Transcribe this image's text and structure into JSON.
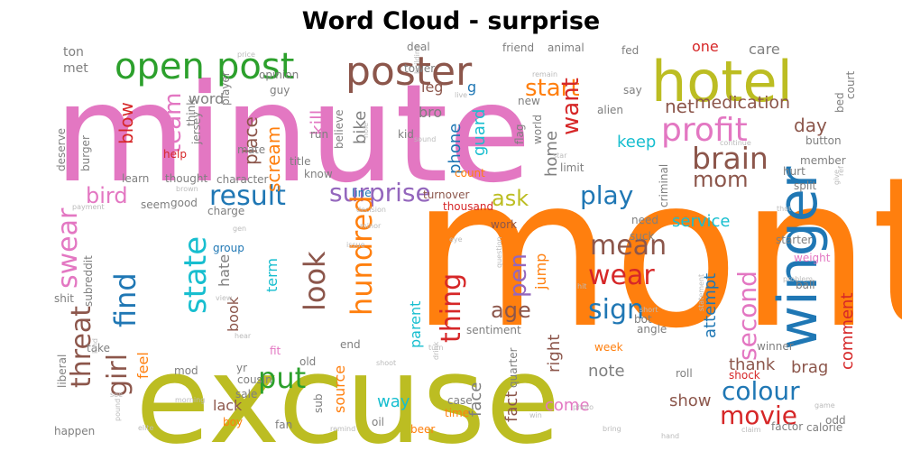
{
  "title": "Word Cloud - surprise",
  "chart_data": {
    "type": "wordcloud",
    "title": "Word Cloud - surprise",
    "words": [
      {
        "text": "month",
        "weight": 100,
        "color": "#ff7f0e"
      },
      {
        "text": "minute",
        "weight": 72,
        "color": "#e377c2"
      },
      {
        "text": "excuse",
        "weight": 70,
        "color": "#bcbd22"
      },
      {
        "text": "hotel",
        "weight": 30,
        "color": "#bcbd22"
      },
      {
        "text": "winger",
        "weight": 28,
        "color": "#1f77b4"
      },
      {
        "text": "poster",
        "weight": 22,
        "color": "#8c564b"
      },
      {
        "text": "open",
        "weight": 20,
        "color": "#2ca02c"
      },
      {
        "text": "post",
        "weight": 20,
        "color": "#2ca02c"
      },
      {
        "text": "profit",
        "weight": 19,
        "color": "#e377c2"
      },
      {
        "text": "brain",
        "weight": 17,
        "color": "#8c564b"
      },
      {
        "text": "result",
        "weight": 16,
        "color": "#1f77b4"
      },
      {
        "text": "surprise",
        "weight": 15,
        "color": "#9467bd"
      },
      {
        "text": "look",
        "weight": 18,
        "color": "#8c564b"
      },
      {
        "text": "hundred",
        "weight": 17,
        "color": "#ff7f0e"
      },
      {
        "text": "state",
        "weight": 17,
        "color": "#17becf"
      },
      {
        "text": "find",
        "weight": 17,
        "color": "#1f77b4"
      },
      {
        "text": "swear",
        "weight": 16,
        "color": "#e377c2"
      },
      {
        "text": "threat",
        "weight": 16,
        "color": "#8c564b"
      },
      {
        "text": "girl",
        "weight": 16,
        "color": "#8c564b"
      },
      {
        "text": "put",
        "weight": 17,
        "color": "#2ca02c"
      },
      {
        "text": "thing",
        "weight": 16,
        "color": "#d62728"
      },
      {
        "text": "mean",
        "weight": 16,
        "color": "#8c564b"
      },
      {
        "text": "wear",
        "weight": 16,
        "color": "#d62728"
      },
      {
        "text": "sign",
        "weight": 16,
        "color": "#1f77b4"
      },
      {
        "text": "play",
        "weight": 15,
        "color": "#1f77b4"
      },
      {
        "text": "second",
        "weight": 15,
        "color": "#e377c2"
      },
      {
        "text": "colour",
        "weight": 15,
        "color": "#1f77b4"
      },
      {
        "text": "movie",
        "weight": 15,
        "color": "#d62728"
      },
      {
        "text": "team",
        "weight": 14,
        "color": "#e377c2"
      },
      {
        "text": "start",
        "weight": 14,
        "color": "#ff7f0e"
      },
      {
        "text": "want",
        "weight": 14,
        "color": "#d62728"
      },
      {
        "text": "pen",
        "weight": 14,
        "color": "#9467bd"
      },
      {
        "text": "age",
        "weight": 13,
        "color": "#8c564b"
      },
      {
        "text": "ask",
        "weight": 13,
        "color": "#bcbd22"
      },
      {
        "text": "bird",
        "weight": 13,
        "color": "#e377c2"
      },
      {
        "text": "mom",
        "weight": 13,
        "color": "#8c564b"
      },
      {
        "text": "medication",
        "weight": 11,
        "color": "#8c564b"
      },
      {
        "text": "net",
        "weight": 11,
        "color": "#8c564b"
      },
      {
        "text": "day",
        "weight": 11,
        "color": "#8c564b"
      },
      {
        "text": "place",
        "weight": 11,
        "color": "#8c564b"
      },
      {
        "text": "scream",
        "weight": 11,
        "color": "#ff7f0e"
      },
      {
        "text": "blow",
        "weight": 11,
        "color": "#d62728"
      },
      {
        "text": "kill",
        "weight": 11,
        "color": "#e377c2"
      },
      {
        "text": "bike",
        "weight": 10,
        "color": "#7f7f7f"
      },
      {
        "text": "guard",
        "weight": 10,
        "color": "#17becf"
      },
      {
        "text": "phone",
        "weight": 10,
        "color": "#1f77b4"
      },
      {
        "text": "home",
        "weight": 10,
        "color": "#7f7f7f"
      },
      {
        "text": "keep",
        "weight": 10,
        "color": "#17becf"
      },
      {
        "text": "service",
        "weight": 10,
        "color": "#17becf"
      },
      {
        "text": "attempt",
        "weight": 10,
        "color": "#1f77b4"
      },
      {
        "text": "comment",
        "weight": 10,
        "color": "#d62728"
      },
      {
        "text": "thank",
        "weight": 10,
        "color": "#8c564b"
      },
      {
        "text": "brag",
        "weight": 10,
        "color": "#8c564b"
      },
      {
        "text": "note",
        "weight": 10,
        "color": "#7f7f7f"
      },
      {
        "text": "face",
        "weight": 10,
        "color": "#7f7f7f"
      },
      {
        "text": "fact",
        "weight": 10,
        "color": "#8c564b"
      },
      {
        "text": "right",
        "weight": 10,
        "color": "#8c564b"
      },
      {
        "text": "come",
        "weight": 10,
        "color": "#e377c2"
      },
      {
        "text": "show",
        "weight": 10,
        "color": "#8c564b"
      },
      {
        "text": "way",
        "weight": 10,
        "color": "#17becf"
      },
      {
        "text": "source",
        "weight": 9,
        "color": "#ff7f0e"
      },
      {
        "text": "term",
        "weight": 9,
        "color": "#17becf"
      },
      {
        "text": "book",
        "weight": 9,
        "color": "#8c564b"
      },
      {
        "text": "hate",
        "weight": 9,
        "color": "#7f7f7f"
      },
      {
        "text": "parent",
        "weight": 9,
        "color": "#17becf"
      },
      {
        "text": "jump",
        "weight": 9,
        "color": "#ff7f0e"
      },
      {
        "text": "lack",
        "weight": 9,
        "color": "#8c564b"
      },
      {
        "text": "feel",
        "weight": 9,
        "color": "#ff7f0e"
      },
      {
        "text": "word",
        "weight": 9,
        "color": "#7f7f7f"
      },
      {
        "text": "one",
        "weight": 9,
        "color": "#d62728"
      },
      {
        "text": "care",
        "weight": 9,
        "color": "#7f7f7f"
      },
      {
        "text": "leg",
        "weight": 9,
        "color": "#8c564b"
      },
      {
        "text": "bro",
        "weight": 9,
        "color": "#7f7f7f"
      },
      {
        "text": "met",
        "weight": 8,
        "color": "#7f7f7f"
      },
      {
        "text": "ton",
        "weight": 8,
        "color": "#7f7f7f"
      },
      {
        "text": "g",
        "weight": 8,
        "color": "#1f77b4"
      },
      {
        "text": "character",
        "weight": 6,
        "color": "#7f7f7f"
      },
      {
        "text": "thought",
        "weight": 6,
        "color": "#7f7f7f"
      },
      {
        "text": "learn",
        "weight": 6,
        "color": "#7f7f7f"
      },
      {
        "text": "help",
        "weight": 6,
        "color": "#d62728"
      },
      {
        "text": "charge",
        "weight": 6,
        "color": "#7f7f7f"
      },
      {
        "text": "group",
        "weight": 6,
        "color": "#1f77b4"
      },
      {
        "text": "thousand",
        "weight": 6,
        "color": "#d62728"
      },
      {
        "text": "turnover",
        "weight": 6,
        "color": "#8c564b"
      },
      {
        "text": "count",
        "weight": 6,
        "color": "#ff7f0e"
      },
      {
        "text": "line",
        "weight": 6,
        "color": "#1f77b4"
      },
      {
        "text": "know",
        "weight": 6,
        "color": "#7f7f7f"
      },
      {
        "text": "title",
        "weight": 6,
        "color": "#7f7f7f"
      },
      {
        "text": "run",
        "weight": 6,
        "color": "#7f7f7f"
      },
      {
        "text": "work",
        "weight": 6,
        "color": "#8c564b"
      },
      {
        "text": "need",
        "weight": 6,
        "color": "#7f7f7f"
      },
      {
        "text": "starter",
        "weight": 6,
        "color": "#7f7f7f"
      },
      {
        "text": "weight",
        "weight": 6,
        "color": "#e377c2"
      },
      {
        "text": "ball",
        "weight": 6,
        "color": "#7f7f7f"
      },
      {
        "text": "bot",
        "weight": 6,
        "color": "#7f7f7f"
      },
      {
        "text": "angle",
        "weight": 6,
        "color": "#7f7f7f"
      },
      {
        "text": "sentiment",
        "weight": 6,
        "color": "#7f7f7f"
      },
      {
        "text": "week",
        "weight": 6,
        "color": "#ff7f0e"
      },
      {
        "text": "roll",
        "weight": 6,
        "color": "#7f7f7f"
      },
      {
        "text": "shock",
        "weight": 6,
        "color": "#d62728"
      },
      {
        "text": "winner",
        "weight": 6,
        "color": "#7f7f7f"
      },
      {
        "text": "take",
        "weight": 6,
        "color": "#7f7f7f"
      },
      {
        "text": "end",
        "weight": 6,
        "color": "#7f7f7f"
      },
      {
        "text": "old",
        "weight": 6,
        "color": "#7f7f7f"
      },
      {
        "text": "yr",
        "weight": 6,
        "color": "#7f7f7f"
      },
      {
        "text": "mod",
        "weight": 6,
        "color": "#7f7f7f"
      },
      {
        "text": "cousin",
        "weight": 6,
        "color": "#7f7f7f"
      },
      {
        "text": "sale",
        "weight": 6,
        "color": "#7f7f7f"
      },
      {
        "text": "boy",
        "weight": 6,
        "color": "#ff7f0e"
      },
      {
        "text": "fan",
        "weight": 6,
        "color": "#7f7f7f"
      },
      {
        "text": "oil",
        "weight": 6,
        "color": "#7f7f7f"
      },
      {
        "text": "beer",
        "weight": 6,
        "color": "#ff7f0e"
      },
      {
        "text": "time",
        "weight": 6,
        "color": "#ff7f0e"
      },
      {
        "text": "case",
        "weight": 6,
        "color": "#7f7f7f"
      },
      {
        "text": "factor",
        "weight": 6,
        "color": "#7f7f7f"
      },
      {
        "text": "calorie",
        "weight": 6,
        "color": "#7f7f7f"
      },
      {
        "text": "odd",
        "weight": 6,
        "color": "#7f7f7f"
      },
      {
        "text": "fit",
        "weight": 6,
        "color": "#e377c2"
      },
      {
        "text": "happen",
        "weight": 6,
        "color": "#7f7f7f"
      },
      {
        "text": "shit",
        "weight": 6,
        "color": "#7f7f7f"
      },
      {
        "text": "liberal",
        "weight": 6,
        "color": "#7f7f7f"
      },
      {
        "text": "button",
        "weight": 6,
        "color": "#7f7f7f"
      },
      {
        "text": "member",
        "weight": 6,
        "color": "#7f7f7f"
      },
      {
        "text": "split",
        "weight": 6,
        "color": "#7f7f7f"
      },
      {
        "text": "hurt",
        "weight": 6,
        "color": "#7f7f7f"
      },
      {
        "text": "limit",
        "weight": 6,
        "color": "#7f7f7f"
      },
      {
        "text": "opinion",
        "weight": 6,
        "color": "#7f7f7f"
      },
      {
        "text": "guy",
        "weight": 6,
        "color": "#7f7f7f"
      },
      {
        "text": "player",
        "weight": 6,
        "color": "#7f7f7f"
      },
      {
        "text": "say",
        "weight": 6,
        "color": "#7f7f7f"
      },
      {
        "text": "deal",
        "weight": 6,
        "color": "#7f7f7f"
      },
      {
        "text": "friend",
        "weight": 6,
        "color": "#7f7f7f"
      },
      {
        "text": "animal",
        "weight": 6,
        "color": "#7f7f7f"
      },
      {
        "text": "fed",
        "weight": 6,
        "color": "#7f7f7f"
      },
      {
        "text": "alien",
        "weight": 6,
        "color": "#7f7f7f"
      },
      {
        "text": "tower",
        "weight": 6,
        "color": "#7f7f7f"
      },
      {
        "text": "new",
        "weight": 6,
        "color": "#7f7f7f"
      },
      {
        "text": "kid",
        "weight": 6,
        "color": "#7f7f7f"
      },
      {
        "text": "flag",
        "weight": 6,
        "color": "#7f7f7f"
      },
      {
        "text": "world",
        "weight": 6,
        "color": "#7f7f7f"
      },
      {
        "text": "mate",
        "weight": 6,
        "color": "#7f7f7f"
      },
      {
        "text": "think",
        "weight": 6,
        "color": "#7f7f7f"
      },
      {
        "text": "jersey",
        "weight": 6,
        "color": "#7f7f7f"
      },
      {
        "text": "burger",
        "weight": 6,
        "color": "#7f7f7f"
      },
      {
        "text": "deserve",
        "weight": 6,
        "color": "#7f7f7f"
      },
      {
        "text": "believe",
        "weight": 6,
        "color": "#7f7f7f"
      },
      {
        "text": "criminal",
        "weight": 6,
        "color": "#7f7f7f"
      },
      {
        "text": "court",
        "weight": 6,
        "color": "#7f7f7f"
      },
      {
        "text": "good",
        "weight": 6,
        "color": "#7f7f7f"
      },
      {
        "text": "seem",
        "weight": 6,
        "color": "#7f7f7f"
      },
      {
        "text": "suck",
        "weight": 6,
        "color": "#7f7f7f"
      },
      {
        "text": "sub",
        "weight": 6,
        "color": "#7f7f7f"
      },
      {
        "text": "quarter",
        "weight": 6,
        "color": "#7f7f7f"
      },
      {
        "text": "subreddit",
        "weight": 6,
        "color": "#7f7f7f"
      },
      {
        "text": "bed",
        "weight": 6,
        "color": "#7f7f7f"
      },
      {
        "text": "price",
        "weight": 4,
        "color": "#bbbbbb"
      },
      {
        "text": "building",
        "weight": 4,
        "color": "#bbbbbb"
      },
      {
        "text": "remain",
        "weight": 4,
        "color": "#bbbbbb"
      },
      {
        "text": "live",
        "weight": 4,
        "color": "#bbbbbb"
      },
      {
        "text": "hole",
        "weight": 4,
        "color": "#bbbbbb"
      },
      {
        "text": "sound",
        "weight": 4,
        "color": "#bbbbbb"
      },
      {
        "text": "star",
        "weight": 4,
        "color": "#bbbbbb"
      },
      {
        "text": "continue",
        "weight": 4,
        "color": "#bbbbbb"
      },
      {
        "text": "brown",
        "weight": 4,
        "color": "#bbbbbb"
      },
      {
        "text": "give",
        "weight": 4,
        "color": "#bbbbbb"
      },
      {
        "text": "ref",
        "weight": 4,
        "color": "#bbbbbb"
      },
      {
        "text": "payment",
        "weight": 4,
        "color": "#bbbbbb"
      },
      {
        "text": "decision",
        "weight": 4,
        "color": "#bbbbbb"
      },
      {
        "text": "minor",
        "weight": 4,
        "color": "#bbbbbb"
      },
      {
        "text": "issue",
        "weight": 4,
        "color": "#bbbbbb"
      },
      {
        "text": "question",
        "weight": 4,
        "color": "#bbbbbb"
      },
      {
        "text": "eye",
        "weight": 4,
        "color": "#bbbbbb"
      },
      {
        "text": "hit",
        "weight": 4,
        "color": "#bbbbbb"
      },
      {
        "text": "short",
        "weight": 4,
        "color": "#bbbbbb"
      },
      {
        "text": "problem",
        "weight": 4,
        "color": "#bbbbbb"
      },
      {
        "text": "statement",
        "weight": 4,
        "color": "#bbbbbb"
      },
      {
        "text": "view",
        "weight": 4,
        "color": "#bbbbbb"
      },
      {
        "text": "hear",
        "weight": 4,
        "color": "#bbbbbb"
      },
      {
        "text": "kind",
        "weight": 4,
        "color": "#bbbbbb"
      },
      {
        "text": "shoot",
        "weight": 4,
        "color": "#bbbbbb"
      },
      {
        "text": "drink",
        "weight": 4,
        "color": "#bbbbbb"
      },
      {
        "text": "turn",
        "weight": 4,
        "color": "#bbbbbb"
      },
      {
        "text": "morning",
        "weight": 4,
        "color": "#bbbbbb"
      },
      {
        "text": "see",
        "weight": 4,
        "color": "#bbbbbb"
      },
      {
        "text": "pound",
        "weight": 4,
        "color": "#bbbbbb"
      },
      {
        "text": "elite",
        "weight": 4,
        "color": "#bbbbbb"
      },
      {
        "text": "remind",
        "weight": 4,
        "color": "#bbbbbb"
      },
      {
        "text": "photo",
        "weight": 4,
        "color": "#bbbbbb"
      },
      {
        "text": "win",
        "weight": 4,
        "color": "#bbbbbb"
      },
      {
        "text": "bring",
        "weight": 4,
        "color": "#bbbbbb"
      },
      {
        "text": "hand",
        "weight": 4,
        "color": "#bbbbbb"
      },
      {
        "text": "claim",
        "weight": 4,
        "color": "#bbbbbb"
      },
      {
        "text": "game",
        "weight": 4,
        "color": "#bbbbbb"
      },
      {
        "text": "thot",
        "weight": 4,
        "color": "#bbbbbb"
      },
      {
        "text": "gen",
        "weight": 4,
        "color": "#bbbbbb"
      }
    ]
  }
}
